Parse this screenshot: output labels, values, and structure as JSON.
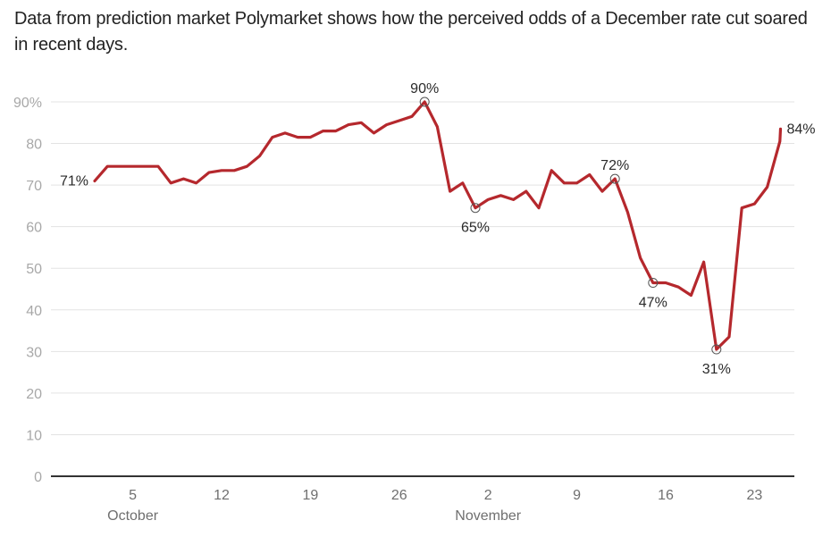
{
  "header": {
    "title": "Data from prediction market Polymarket shows how the perceived odds of a December rate cut soared in recent days."
  },
  "colors": {
    "line": "#b5282d",
    "grid": "#e3e3e3",
    "axis": "#333333",
    "tick_text": "#a8a8a8",
    "annotation_text": "#2a2a2a"
  },
  "chart_data": {
    "type": "line",
    "title": "Data from prediction market Polymarket shows how the perceived odds of a December rate cut soared in recent days.",
    "xlabel": "",
    "ylabel": "",
    "ylim": [
      0,
      90
    ],
    "grid": true,
    "legend": "none",
    "y_ticks": [
      {
        "value": 90,
        "label": "90%"
      },
      {
        "value": 80,
        "label": "80"
      },
      {
        "value": 70,
        "label": "70"
      },
      {
        "value": 60,
        "label": "60"
      },
      {
        "value": 50,
        "label": "50"
      },
      {
        "value": 40,
        "label": "40"
      },
      {
        "value": 30,
        "label": "30"
      },
      {
        "value": 20,
        "label": "20"
      },
      {
        "value": 10,
        "label": "10"
      },
      {
        "value": 0,
        "label": "0"
      }
    ],
    "x_day_range": [
      -1,
      55.5
    ],
    "x_ticks": [
      {
        "day": 4,
        "label": "5",
        "month": "October"
      },
      {
        "day": 11,
        "label": "12",
        "month": ""
      },
      {
        "day": 18,
        "label": "19",
        "month": ""
      },
      {
        "day": 25,
        "label": "26",
        "month": ""
      },
      {
        "day": 32,
        "label": "2",
        "month": "November"
      },
      {
        "day": 39,
        "label": "9",
        "month": ""
      },
      {
        "day": 46,
        "label": "16",
        "month": ""
      },
      {
        "day": 53,
        "label": "23",
        "month": ""
      }
    ],
    "series": [
      {
        "name": "Odds of December rate cut",
        "x_days_since_oct1": [
          1,
          2,
          3,
          4,
          5,
          6,
          7,
          8,
          9,
          10,
          11,
          12,
          13,
          14,
          15,
          16,
          17,
          18,
          19,
          20,
          21,
          22,
          23,
          24,
          25,
          26,
          27,
          28,
          29,
          30,
          31,
          32,
          33,
          34,
          35,
          36,
          37,
          38,
          39,
          40,
          41,
          42,
          43,
          44,
          45,
          46,
          47,
          48,
          49,
          50,
          51,
          52,
          53,
          54,
          55,
          55.05
        ],
        "values": [
          71,
          74.5,
          74.5,
          74.5,
          74.5,
          74.5,
          70.5,
          71.5,
          70.5,
          73,
          73.5,
          73.5,
          74.5,
          77,
          81.5,
          82.5,
          81.5,
          81.5,
          83,
          83,
          84.5,
          85,
          82.5,
          84.5,
          85.5,
          86.5,
          90,
          84,
          68.5,
          70.5,
          64.5,
          66.5,
          67.5,
          66.5,
          68.5,
          64.5,
          73.5,
          70.5,
          70.5,
          72.5,
          68.5,
          71.5,
          63.5,
          52.5,
          46.5,
          46.5,
          45.5,
          43.5,
          51.5,
          30.5,
          33.5,
          64.5,
          65.5,
          69.5,
          80.5,
          83.5
        ]
      }
    ],
    "annotations": [
      {
        "index": 0,
        "label": "71%",
        "position": "left",
        "marker": false
      },
      {
        "index": 26,
        "label": "90%",
        "position": "above",
        "marker": true
      },
      {
        "index": 30,
        "label": "65%",
        "position": "below",
        "marker": true
      },
      {
        "index": 41,
        "label": "72%",
        "position": "above",
        "marker": true
      },
      {
        "index": 44,
        "label": "47%",
        "position": "below",
        "marker": true
      },
      {
        "index": 49,
        "label": "31%",
        "position": "below",
        "marker": true
      },
      {
        "index": 55,
        "label": "84%",
        "position": "right",
        "marker": false
      }
    ]
  }
}
